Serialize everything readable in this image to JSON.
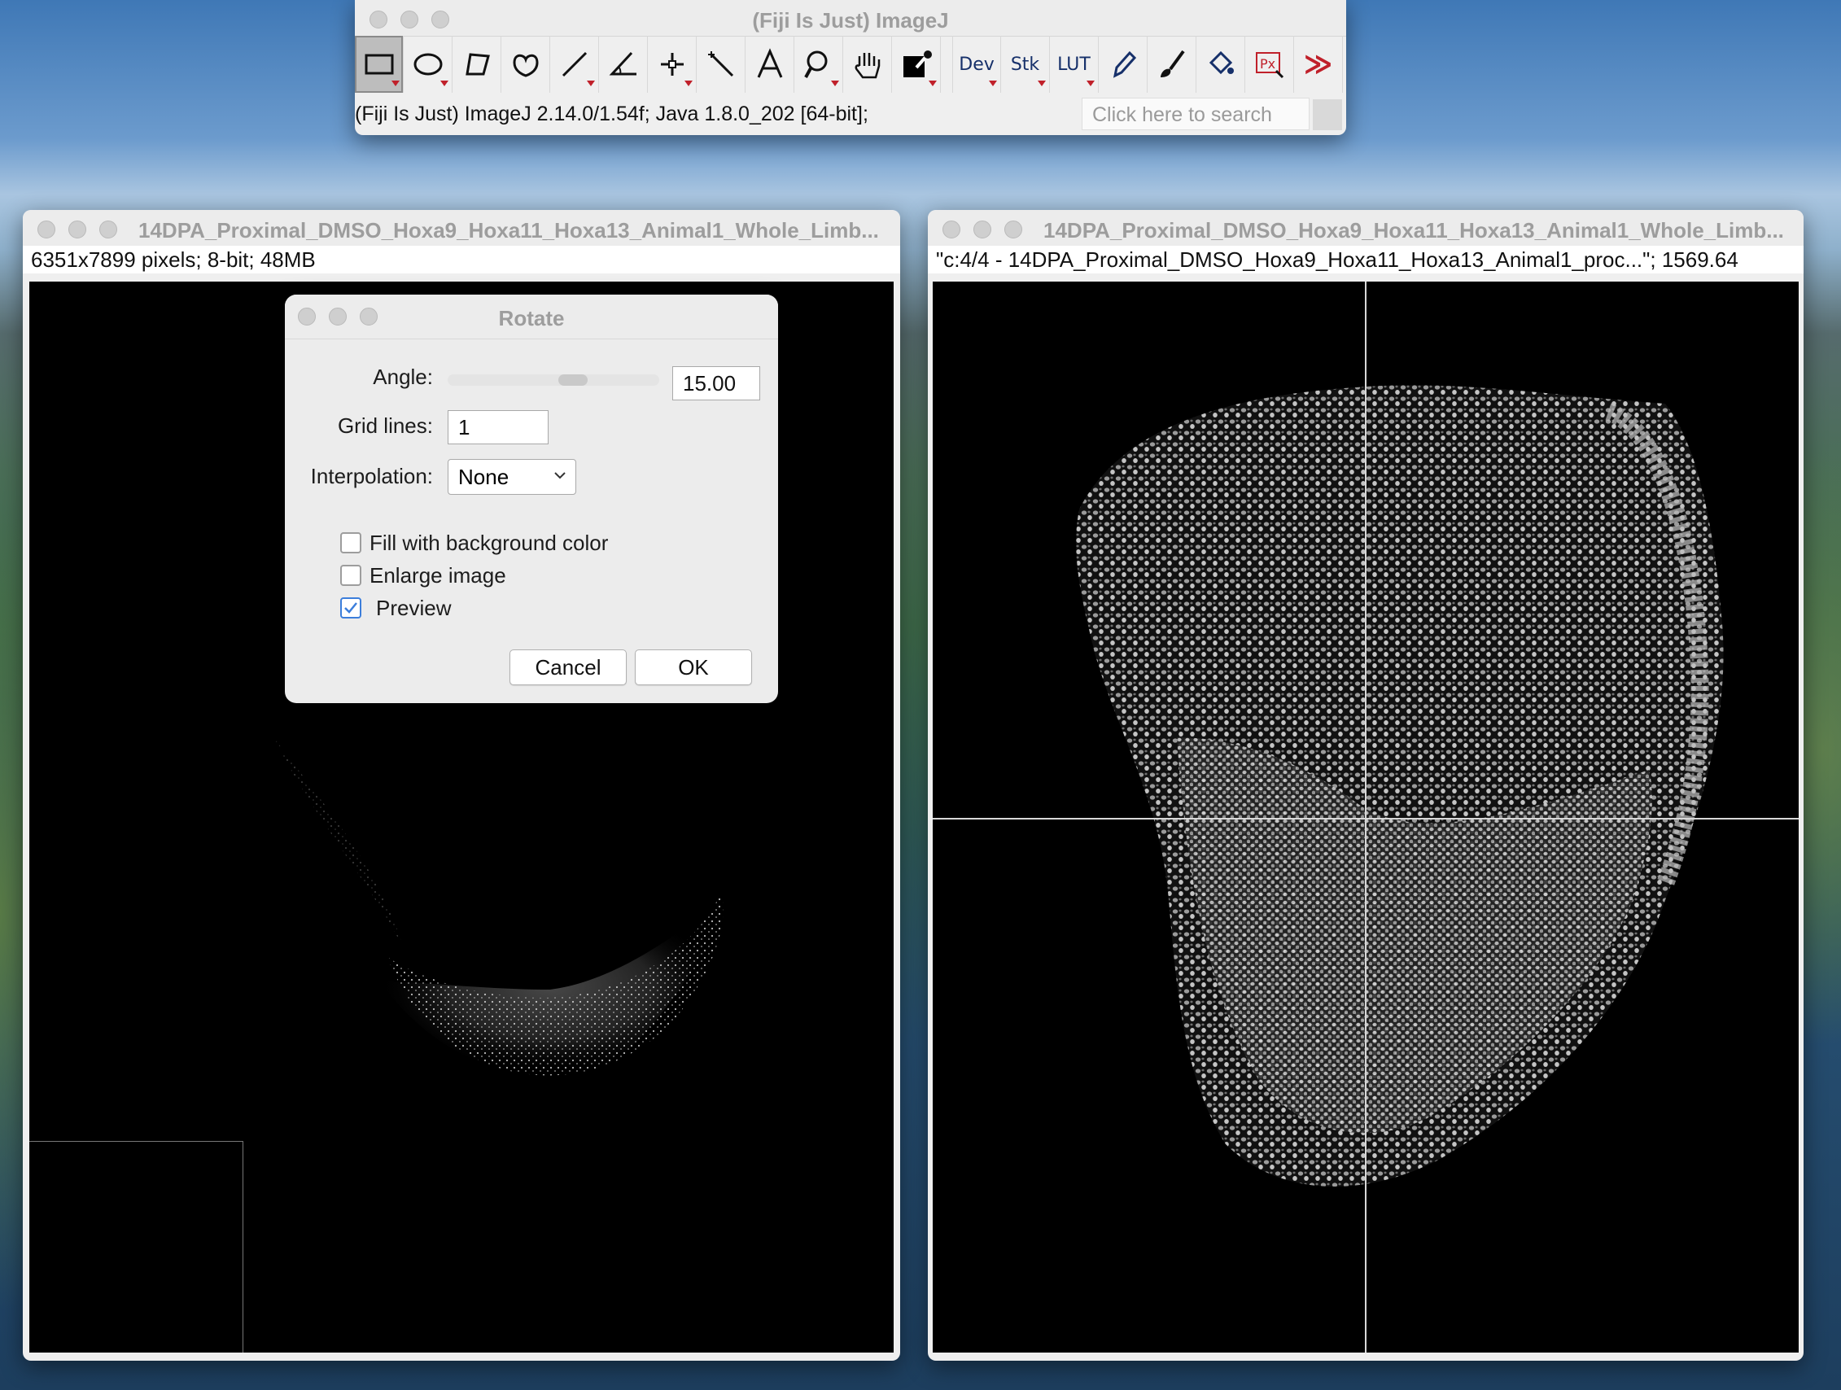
{
  "imagej": {
    "title": "(Fiji Is Just) ImageJ",
    "status": "(Fiji Is Just) ImageJ 2.14.0/1.54f; Java 1.8.0_202 [64-bit];",
    "search_placeholder": "Click here to search",
    "tools": {
      "dev": "Dev",
      "stk": "Stk",
      "lut": "LUT",
      "more": "≫"
    }
  },
  "left_window": {
    "title": "14DPA_Proximal_DMSO_Hoxa9_Hoxa11_Hoxa13_Animal1_Whole_Limb...",
    "info": "6351x7899 pixels; 8-bit; 48MB"
  },
  "right_window": {
    "title": "14DPA_Proximal_DMSO_Hoxa9_Hoxa11_Hoxa13_Animal1_Whole_Limb...",
    "info": "\"c:4/4 - 14DPA_Proximal_DMSO_Hoxa9_Hoxa11_Hoxa13_Animal1_proc...\"; 1569.64"
  },
  "rotate_dialog": {
    "title": "Rotate",
    "angle_label": "Angle:",
    "angle_value": "15.00",
    "grid_label": "Grid lines:",
    "grid_value": "1",
    "interp_label": "Interpolation:",
    "interp_value": "None",
    "fill_label": "Fill with background color",
    "fill_checked": false,
    "enlarge_label": "Enlarge image",
    "enlarge_checked": false,
    "preview_label": "Preview",
    "preview_checked": true,
    "cancel_label": "Cancel",
    "ok_label": "OK"
  }
}
